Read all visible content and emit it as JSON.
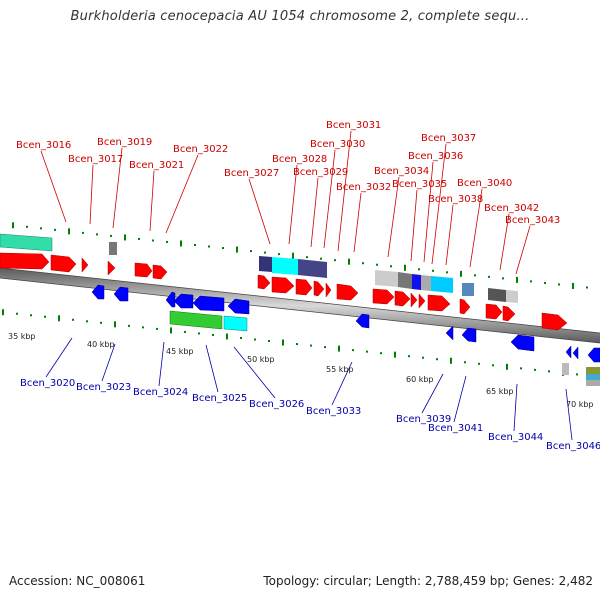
{
  "title": "Burkholderia cenocepacia AU 1054 chromosome 2, complete sequ...",
  "footer": {
    "accession": "Accession: NC_008061",
    "summary": "Topology: circular; Length: 2,788,459 bp; Genes: 2,482"
  },
  "colors": {
    "forward_gene": "#ff0000",
    "reverse_gene": "#0000ff",
    "forward_label": "#cc0000",
    "reverse_label": "#0000aa",
    "backbone": "#808080",
    "tick_green": "#008000"
  },
  "forward_labels": [
    "Bcen_3016",
    "Bcen_3017",
    "Bcen_3019",
    "Bcen_3021",
    "Bcen_3022",
    "Bcen_3027",
    "Bcen_3028",
    "Bcen_3029",
    "Bcen_3030",
    "Bcen_3031",
    "Bcen_3032",
    "Bcen_3034",
    "Bcen_3035",
    "Bcen_3036",
    "Bcen_3037",
    "Bcen_3038",
    "Bcen_3040",
    "Bcen_3042",
    "Bcen_3043"
  ],
  "reverse_labels": [
    "Bcen_3020",
    "Bcen_3023",
    "Bcen_3024",
    "Bcen_3025",
    "Bcen_3026",
    "Bcen_3033",
    "Bcen_3039",
    "Bcen_3041",
    "Bcen_3044",
    "Bcen_3046"
  ],
  "kbp_ticks": [
    "35 kbp",
    "40 kbp",
    "45 kbp",
    "50 kbp",
    "55 kbp",
    "60 kbp",
    "65 kbp",
    "70 kbp"
  ]
}
